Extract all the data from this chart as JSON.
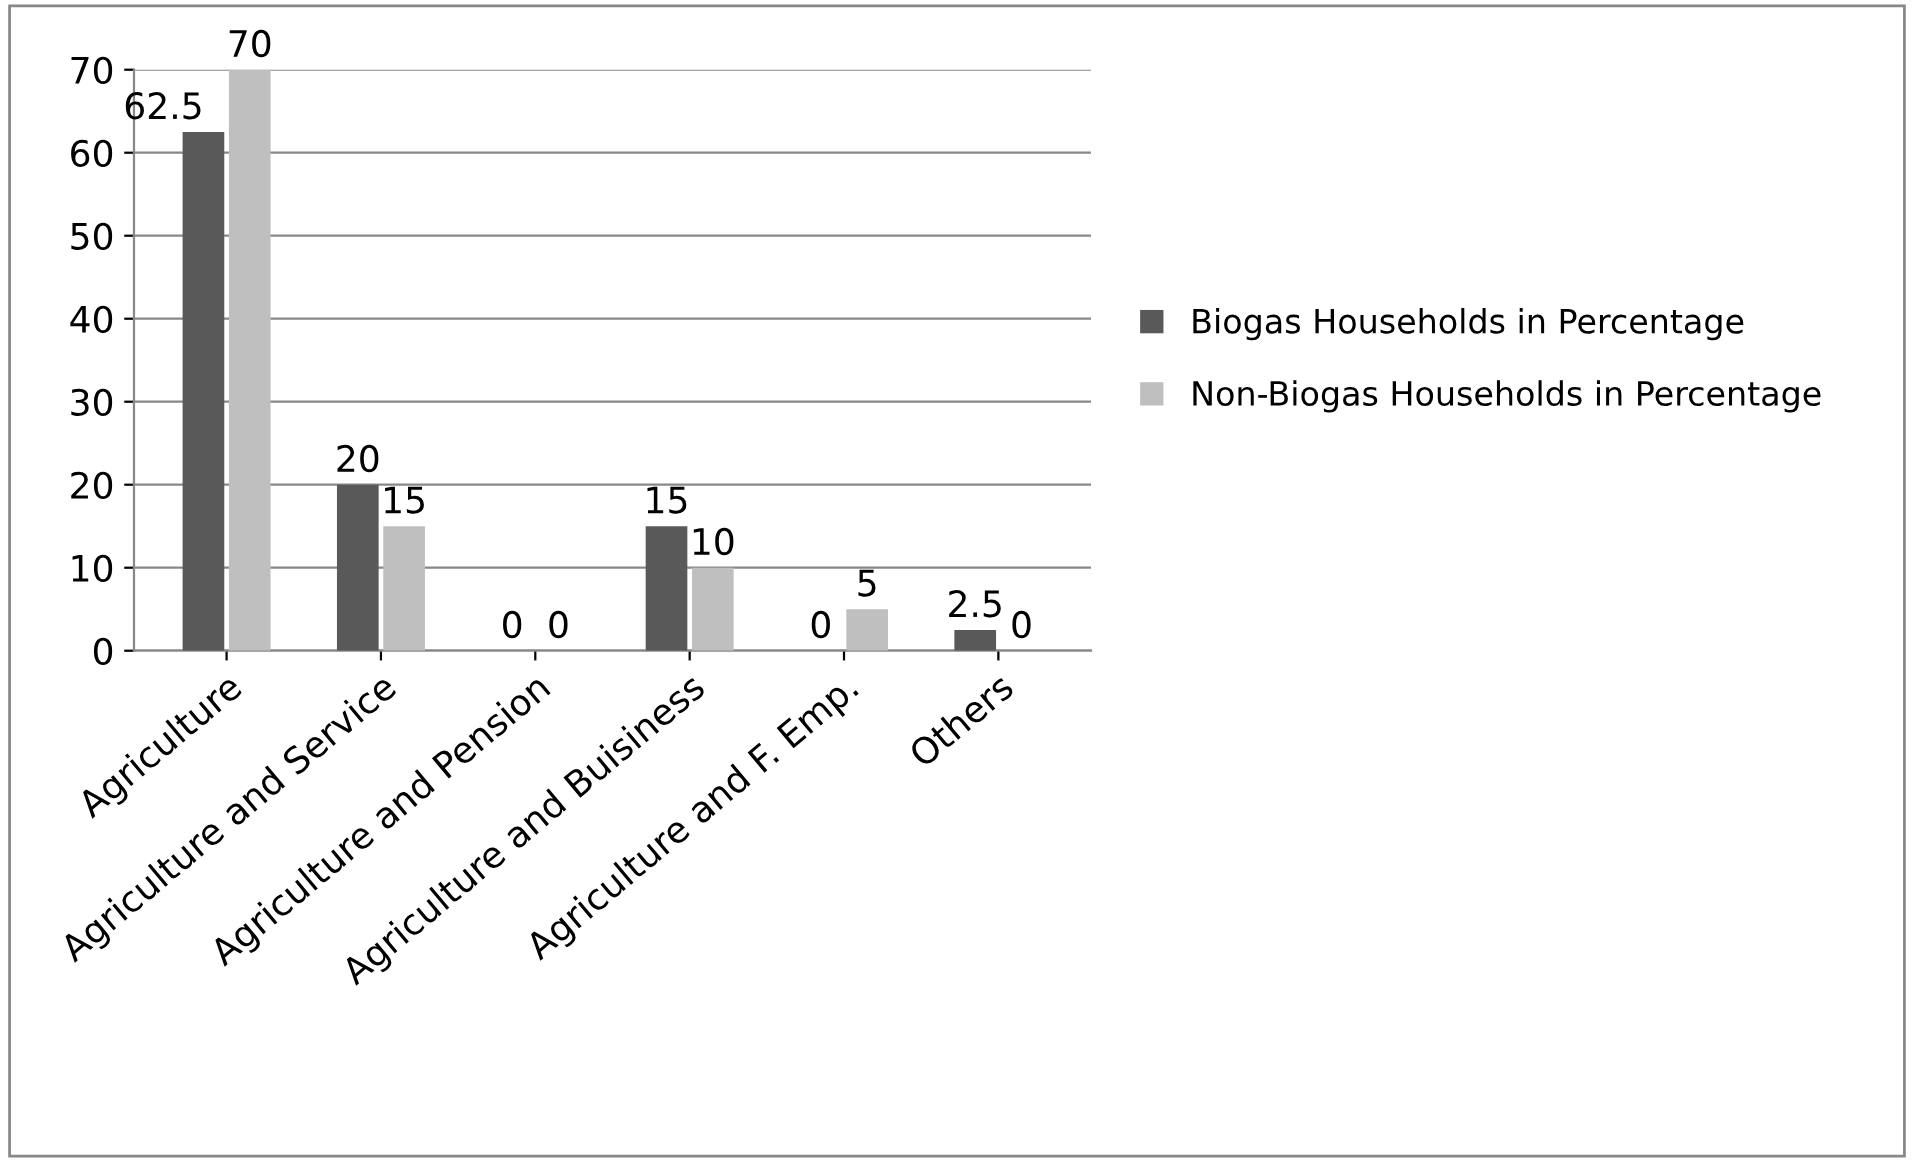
{
  "chart_data": {
    "type": "bar",
    "categories": [
      "Agriculture",
      "Agriculture and Service",
      "Agriculture and Pension",
      "Agriculture and Buisiness",
      "Agriculture and F. Emp.",
      "Others"
    ],
    "series": [
      {
        "name": "Biogas Households in Percentage",
        "color": "#595959",
        "values": [
          62.5,
          20,
          0,
          15,
          0,
          2.5
        ]
      },
      {
        "name": "Non-Biogas Households in Percentage",
        "color": "#bfbfbf",
        "values": [
          70,
          15,
          0,
          10,
          5,
          0
        ]
      }
    ],
    "ylim": [
      0,
      70
    ],
    "yticks": [
      0,
      10,
      20,
      30,
      40,
      50,
      60,
      70
    ],
    "grid": "y",
    "legend": "right",
    "data_labels": true
  }
}
